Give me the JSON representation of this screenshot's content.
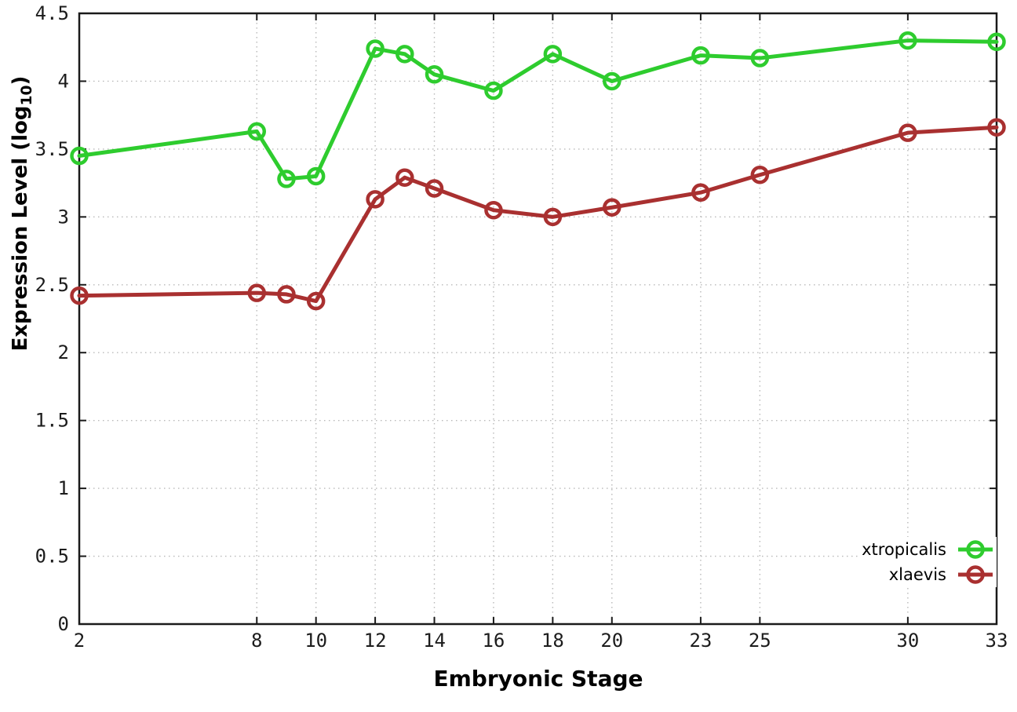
{
  "chart_data": {
    "type": "line",
    "title": "",
    "xlabel": "Embryonic Stage",
    "ylabel": "Expression Level (log10)",
    "ylabel_parts": {
      "prefix": "Expression Level (log",
      "sub": "10",
      "suffix": ")"
    },
    "x": [
      2,
      8,
      9,
      10,
      12,
      13,
      14,
      16,
      18,
      20,
      23,
      25,
      30,
      33
    ],
    "series": [
      {
        "name": "xtropicalis",
        "color": "#2ecc2e",
        "values": [
          3.45,
          3.63,
          3.28,
          3.3,
          4.24,
          4.2,
          4.05,
          3.93,
          4.2,
          4.0,
          4.19,
          4.17,
          4.3,
          4.29
        ]
      },
      {
        "name": "xlaevis",
        "color": "#a93030",
        "values": [
          2.42,
          2.44,
          2.43,
          2.38,
          3.13,
          3.29,
          3.21,
          3.05,
          3.0,
          3.07,
          3.18,
          3.31,
          3.62,
          3.66
        ]
      }
    ],
    "xlim": [
      2,
      33
    ],
    "ylim": [
      0,
      4.5
    ],
    "xticks": {
      "values": [
        2,
        8,
        10,
        12,
        14,
        16,
        18,
        20,
        23,
        25,
        30,
        33
      ],
      "labels": [
        "2",
        "8",
        "10",
        "12",
        "14",
        "16",
        "18",
        "20",
        "23",
        "25",
        "30",
        "33"
      ]
    },
    "yticks": {
      "values": [
        0,
        0.5,
        1,
        1.5,
        2,
        2.5,
        3,
        3.5,
        4,
        4.5
      ],
      "labels": [
        "0",
        "0.5",
        "1",
        "1.5",
        "2",
        "2.5",
        "3",
        "3.5",
        "4",
        "4.5"
      ]
    },
    "grid": true,
    "legend_position": "bottom-right",
    "marker": "open-circle"
  }
}
